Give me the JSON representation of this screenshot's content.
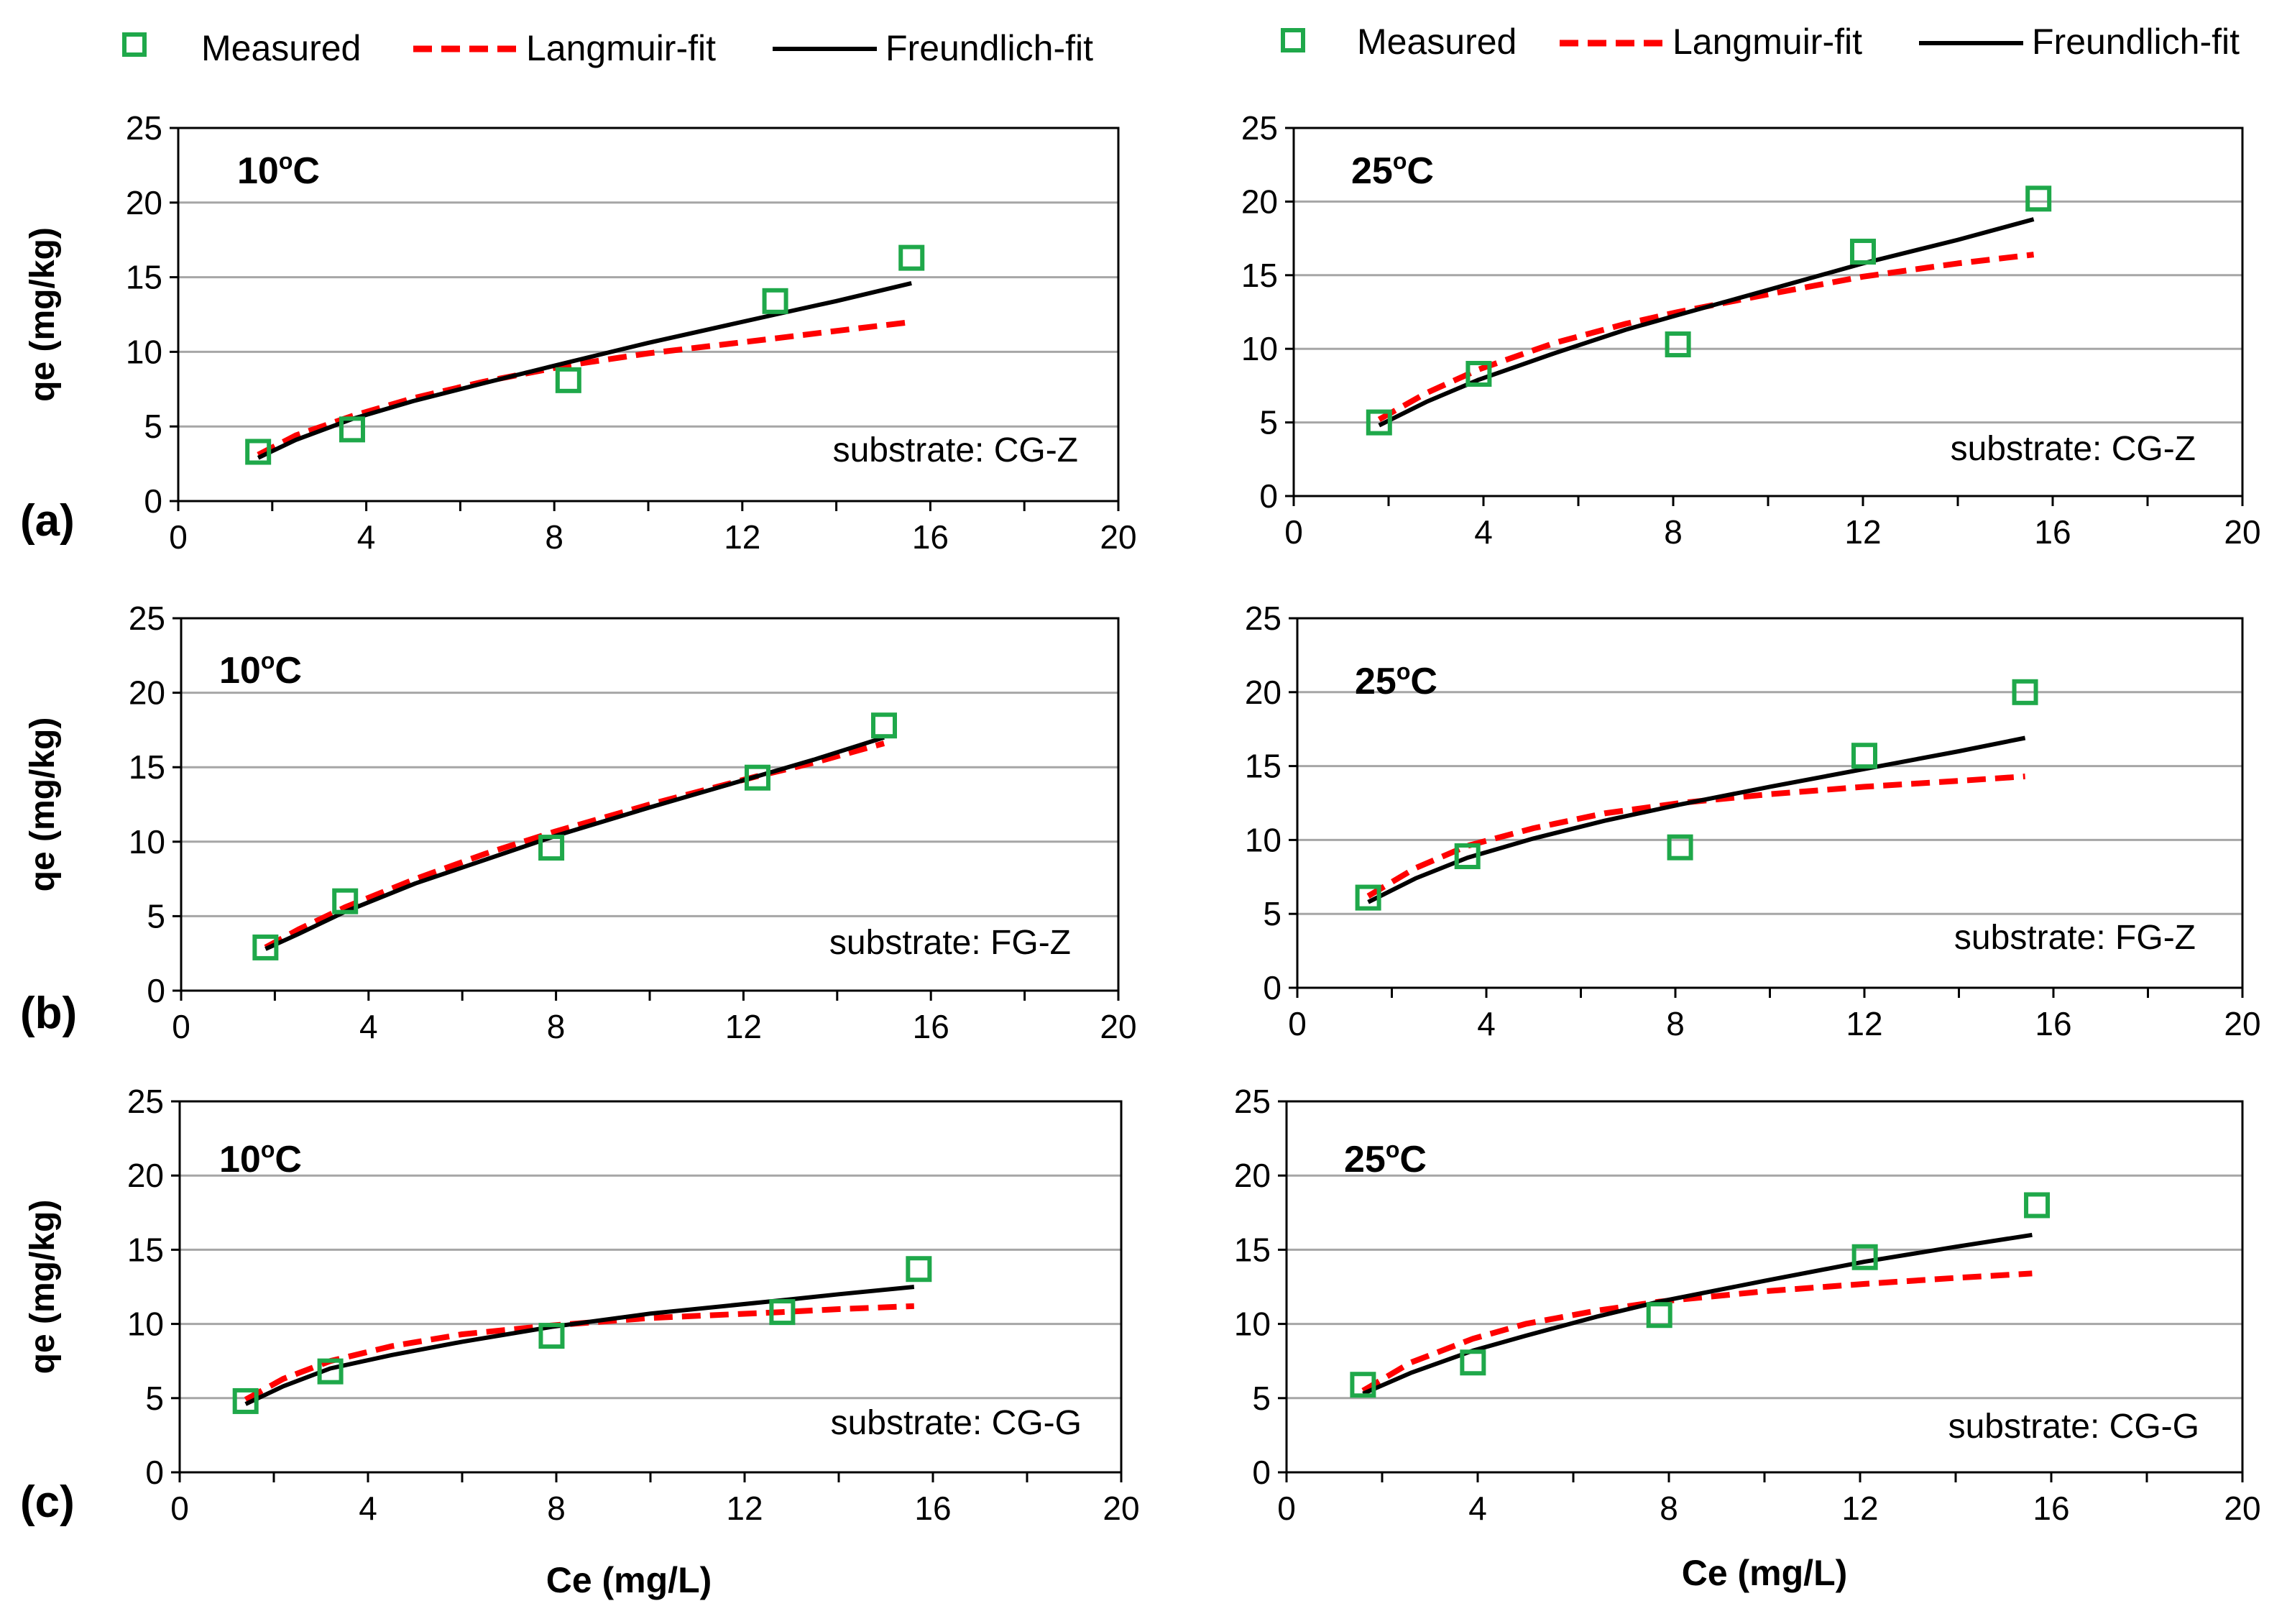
{
  "colors": {
    "measured": "#1fa84a",
    "langmuir": "#ff0000",
    "freundlich": "#000000",
    "grid": "#a6a6a6",
    "axis": "#000000"
  },
  "legend": {
    "items": [
      {
        "name": "Measured",
        "marker": "square-open"
      },
      {
        "name": "Langmuir-fit",
        "marker": "dashed-line"
      },
      {
        "name": "Freundlich-fit",
        "marker": "solid-line"
      }
    ]
  },
  "rows": [
    {
      "label": "(a)"
    },
    {
      "label": "(b)"
    },
    {
      "label": "(c)"
    }
  ],
  "chart_data": [
    {
      "type": "scatter",
      "title": "10oC",
      "temperature": {
        "value": "10",
        "sup": "o",
        "unit": "C"
      },
      "annotation": "substrate: CG-Z",
      "row_label": "(a)",
      "xlabel": "",
      "ylabel": "qe (mg/kg)",
      "xlim": [
        0,
        20
      ],
      "ylim": [
        0,
        25
      ],
      "xticks": [
        0,
        4,
        8,
        12,
        16,
        20
      ],
      "yticks": [
        0,
        5,
        10,
        15,
        20,
        25
      ],
      "grid": "horizontal",
      "series": [
        {
          "name": "Measured",
          "type": "scatter",
          "x": [
            1.7,
            3.7,
            8.3,
            12.7,
            15.6
          ],
          "y": [
            3.3,
            4.8,
            8.1,
            13.4,
            16.3
          ]
        },
        {
          "name": "Langmuir-fit",
          "type": "line",
          "x": [
            1.7,
            2.5,
            3.7,
            5.0,
            6.5,
            8.3,
            10.0,
            12.7,
            14.0,
            15.6
          ],
          "y": [
            3.1,
            4.4,
            5.7,
            6.9,
            8.0,
            9.1,
            9.9,
            10.9,
            11.4,
            12.0
          ]
        },
        {
          "name": "Freundlich-fit",
          "type": "line",
          "x": [
            1.7,
            2.5,
            3.7,
            5.0,
            6.5,
            8.3,
            10.0,
            12.7,
            14.0,
            15.6
          ],
          "y": [
            2.9,
            4.1,
            5.5,
            6.7,
            7.9,
            9.3,
            10.6,
            12.5,
            13.4,
            14.6
          ]
        }
      ]
    },
    {
      "type": "scatter",
      "title": "25oC",
      "temperature": {
        "value": "25",
        "sup": "o",
        "unit": "C"
      },
      "annotation": "substrate: CG-Z",
      "row_label": "(a)",
      "xlabel": "",
      "ylabel": "",
      "xlim": [
        0,
        20
      ],
      "ylim": [
        0,
        25
      ],
      "xticks": [
        0,
        4,
        8,
        12,
        16,
        20
      ],
      "yticks": [
        0,
        5,
        10,
        15,
        20,
        25
      ],
      "grid": "horizontal",
      "series": [
        {
          "name": "Measured",
          "type": "scatter",
          "x": [
            1.8,
            3.9,
            8.1,
            12.0,
            15.7
          ],
          "y": [
            5.0,
            8.3,
            10.3,
            16.6,
            20.2
          ]
        },
        {
          "name": "Langmuir-fit",
          "type": "line",
          "x": [
            1.8,
            2.8,
            3.9,
            5.5,
            7.0,
            8.1,
            10.0,
            12.0,
            14.0,
            15.6
          ],
          "y": [
            5.2,
            7.0,
            8.6,
            10.4,
            11.7,
            12.5,
            13.7,
            14.9,
            15.8,
            16.4
          ]
        },
        {
          "name": "Freundlich-fit",
          "type": "line",
          "x": [
            1.8,
            2.8,
            3.9,
            5.5,
            7.0,
            8.1,
            10.0,
            12.0,
            14.0,
            15.6
          ],
          "y": [
            4.8,
            6.4,
            7.9,
            9.7,
            11.3,
            12.3,
            14.0,
            15.8,
            17.4,
            18.8
          ]
        }
      ]
    },
    {
      "type": "scatter",
      "title": "10oC",
      "temperature": {
        "value": "10",
        "sup": "o",
        "unit": "C"
      },
      "annotation": "substrate: FG-Z",
      "row_label": "(b)",
      "xlabel": "",
      "ylabel": "qe (mg/kg)",
      "xlim": [
        0,
        20
      ],
      "ylim": [
        0,
        25
      ],
      "xticks": [
        0,
        4,
        8,
        12,
        16,
        20
      ],
      "yticks": [
        0,
        5,
        10,
        15,
        20,
        25
      ],
      "grid": "horizontal",
      "series": [
        {
          "name": "Measured",
          "type": "scatter",
          "x": [
            1.8,
            3.5,
            7.9,
            12.3,
            15.0
          ],
          "y": [
            2.9,
            6.0,
            9.6,
            14.3,
            17.8
          ]
        },
        {
          "name": "Langmuir-fit",
          "type": "line",
          "x": [
            1.8,
            2.5,
            3.5,
            5.0,
            6.5,
            8.0,
            10.0,
            12.3,
            13.5,
            15.0
          ],
          "y": [
            2.9,
            4.1,
            5.6,
            7.5,
            9.2,
            10.7,
            12.5,
            14.4,
            15.3,
            16.6
          ]
        },
        {
          "name": "Freundlich-fit",
          "type": "line",
          "x": [
            1.8,
            2.5,
            3.5,
            5.0,
            6.5,
            8.0,
            10.0,
            12.3,
            13.5,
            15.0
          ],
          "y": [
            2.8,
            3.8,
            5.3,
            7.2,
            8.8,
            10.4,
            12.3,
            14.4,
            15.5,
            17.0
          ]
        }
      ]
    },
    {
      "type": "scatter",
      "title": "25oC",
      "temperature": {
        "value": "25",
        "sup": "o",
        "unit": "C"
      },
      "annotation": "substrate: FG-Z",
      "row_label": "(b)",
      "xlabel": "",
      "ylabel": "",
      "xlim": [
        0,
        20
      ],
      "ylim": [
        0,
        25
      ],
      "xticks": [
        0,
        4,
        8,
        12,
        16,
        20
      ],
      "yticks": [
        0,
        5,
        10,
        15,
        20,
        25
      ],
      "grid": "horizontal",
      "series": [
        {
          "name": "Measured",
          "type": "scatter",
          "x": [
            1.5,
            3.6,
            8.1,
            12.0,
            15.4
          ],
          "y": [
            6.1,
            8.9,
            9.5,
            15.7,
            20.0
          ]
        },
        {
          "name": "Langmuir-fit",
          "type": "line",
          "x": [
            1.5,
            2.5,
            3.6,
            5.0,
            6.5,
            8.1,
            10.0,
            12.0,
            14.0,
            15.4
          ],
          "y": [
            6.2,
            8.1,
            9.6,
            10.8,
            11.8,
            12.5,
            13.1,
            13.6,
            14.0,
            14.3
          ]
        },
        {
          "name": "Freundlich-fit",
          "type": "line",
          "x": [
            1.5,
            2.5,
            3.6,
            5.0,
            6.5,
            8.1,
            10.0,
            12.0,
            14.0,
            15.4
          ],
          "y": [
            5.8,
            7.4,
            8.8,
            10.1,
            11.3,
            12.4,
            13.6,
            14.8,
            16.0,
            16.9
          ]
        }
      ]
    },
    {
      "type": "scatter",
      "title": "10oC",
      "temperature": {
        "value": "10",
        "sup": "o",
        "unit": "C"
      },
      "annotation": "substrate: CG-G",
      "row_label": "(c)",
      "xlabel": "Ce (mg/L)",
      "ylabel": "qe (mg/kg)",
      "xlim": [
        0,
        20
      ],
      "ylim": [
        0,
        25
      ],
      "xticks": [
        0,
        4,
        8,
        12,
        16,
        20
      ],
      "yticks": [
        0,
        5,
        10,
        15,
        20,
        25
      ],
      "grid": "horizontal",
      "series": [
        {
          "name": "Measured",
          "type": "scatter",
          "x": [
            1.4,
            3.2,
            7.9,
            12.8,
            15.7
          ],
          "y": [
            4.8,
            6.8,
            9.2,
            10.8,
            13.7
          ]
        },
        {
          "name": "Langmuir-fit",
          "type": "line",
          "x": [
            1.4,
            2.2,
            3.2,
            4.5,
            6.0,
            7.9,
            10.0,
            12.8,
            14.0,
            15.6
          ],
          "y": [
            4.9,
            6.3,
            7.5,
            8.5,
            9.3,
            9.9,
            10.4,
            10.8,
            11.0,
            11.2
          ]
        },
        {
          "name": "Freundlich-fit",
          "type": "line",
          "x": [
            1.4,
            2.2,
            3.2,
            4.5,
            6.0,
            7.9,
            10.0,
            12.8,
            14.0,
            15.6
          ],
          "y": [
            4.6,
            5.8,
            7.0,
            7.9,
            8.8,
            9.8,
            10.7,
            11.6,
            12.0,
            12.5
          ]
        }
      ]
    },
    {
      "type": "scatter",
      "title": "25oC",
      "temperature": {
        "value": "25",
        "sup": "o",
        "unit": "C"
      },
      "annotation": "substrate: CG-G",
      "row_label": "(c)",
      "xlabel": "Ce (mg/L)",
      "ylabel": "",
      "xlim": [
        0,
        20
      ],
      "ylim": [
        0,
        25
      ],
      "xticks": [
        0,
        4,
        8,
        12,
        16,
        20
      ],
      "yticks": [
        0,
        5,
        10,
        15,
        20,
        25
      ],
      "grid": "horizontal",
      "series": [
        {
          "name": "Measured",
          "type": "scatter",
          "x": [
            1.6,
            3.9,
            7.8,
            12.1,
            15.7
          ],
          "y": [
            5.9,
            7.4,
            10.6,
            14.5,
            18.0
          ]
        },
        {
          "name": "Langmuir-fit",
          "type": "line",
          "x": [
            1.6,
            2.6,
            3.9,
            5.0,
            6.5,
            7.8,
            10.0,
            12.1,
            14.0,
            15.6
          ],
          "y": [
            5.5,
            7.4,
            9.0,
            10.0,
            10.9,
            11.5,
            12.2,
            12.7,
            13.1,
            13.4
          ]
        },
        {
          "name": "Freundlich-fit",
          "type": "line",
          "x": [
            1.6,
            2.6,
            3.9,
            5.0,
            6.5,
            7.8,
            10.0,
            12.1,
            14.0,
            15.6
          ],
          "y": [
            5.3,
            6.7,
            8.2,
            9.2,
            10.5,
            11.5,
            12.9,
            14.2,
            15.2,
            16.0
          ]
        }
      ]
    }
  ]
}
